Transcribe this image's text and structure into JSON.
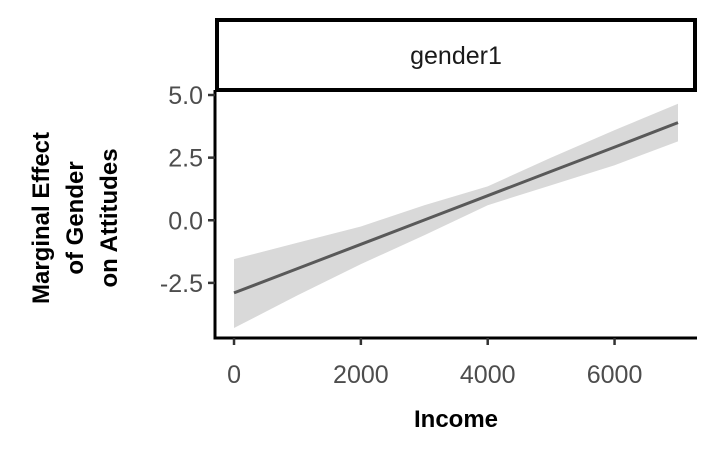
{
  "chart_data": {
    "type": "line",
    "facet_label": "gender1",
    "xlabel": "Income",
    "ylabel_lines": [
      "Marginal Effect",
      "of Gender",
      "on Attitudes"
    ],
    "x_ticks": [
      0,
      2000,
      4000,
      6000
    ],
    "x_tick_labels": [
      "0",
      "2000",
      "4000",
      "6000"
    ],
    "y_ticks": [
      -2.5,
      0.0,
      2.5,
      5.0
    ],
    "y_tick_labels": [
      "-2.5",
      "0.0",
      "2.5",
      "5.0"
    ],
    "xlim": [
      -300,
      7300
    ],
    "ylim": [
      -4.7,
      5.2
    ],
    "series": [
      {
        "x": [
          0,
          1000,
          2000,
          3000,
          4000,
          5000,
          6000,
          7000
        ],
        "y": [
          -2.9,
          -1.93,
          -0.96,
          0.01,
          0.98,
          1.95,
          2.92,
          3.9
        ],
        "lower": [
          -4.3,
          -3.0,
          -1.75,
          -0.6,
          0.6,
          1.4,
          2.2,
          3.15
        ],
        "upper": [
          -1.55,
          -0.9,
          -0.25,
          0.6,
          1.35,
          2.5,
          3.6,
          4.65
        ]
      }
    ],
    "colors": {
      "line": "#595959",
      "band": "#d9d9d9",
      "axis": "#000000"
    },
    "grid": false,
    "legend": "none"
  }
}
